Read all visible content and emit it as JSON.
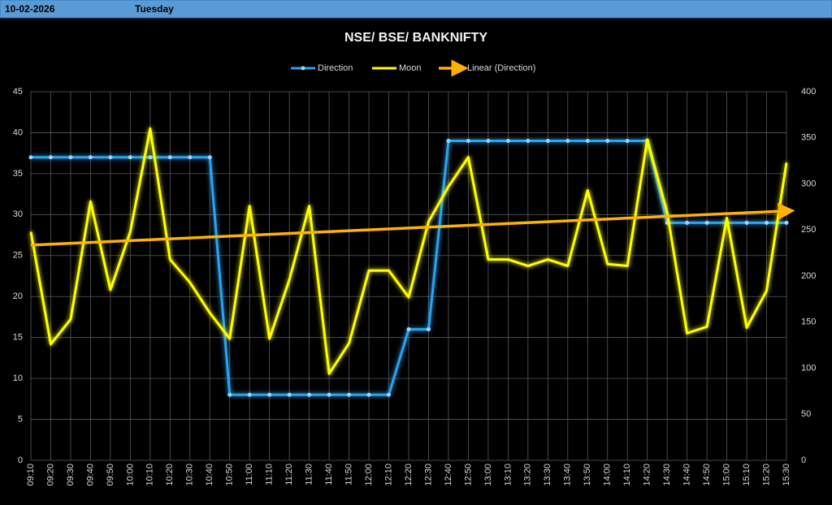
{
  "header": {
    "date": "10-02-2026",
    "day": "Tuesday"
  },
  "chart_data": {
    "type": "line",
    "title": "NSE/ BSE/ BANKNIFTY",
    "categories": [
      "09:10",
      "09:20",
      "09:30",
      "09:40",
      "09:50",
      "10:00",
      "10:10",
      "10:20",
      "10:30",
      "10:40",
      "10:50",
      "11:00",
      "11:10",
      "11:20",
      "11:30",
      "11:40",
      "11:50",
      "12:00",
      "12:10",
      "12:20",
      "12:30",
      "12:40",
      "12:50",
      "13:00",
      "13:10",
      "13:20",
      "13:30",
      "13:40",
      "13:50",
      "14:00",
      "14:10",
      "14:20",
      "14:30",
      "14:40",
      "14:50",
      "15:00",
      "15:10",
      "15:20",
      "15:30"
    ],
    "series": [
      {
        "name": "Direction",
        "color": "#29a3f0",
        "markers": true,
        "values": [
          37,
          37,
          37,
          37,
          37,
          37,
          37,
          37,
          37,
          37,
          8,
          8,
          8,
          8,
          8,
          8,
          8,
          8,
          8,
          16,
          16,
          39,
          39,
          39,
          39,
          39,
          39,
          39,
          39,
          39,
          39,
          39,
          29,
          29,
          29,
          29,
          29,
          29,
          29
        ]
      },
      {
        "name": "Moon",
        "color": "#ffff00",
        "axis": "y2",
        "values": [
          248,
          126,
          153,
          281,
          185,
          248,
          360,
          218,
          193,
          160,
          132,
          276,
          132,
          196,
          276,
          94,
          127,
          206,
          206,
          177,
          259,
          297,
          329,
          218,
          218,
          211,
          218,
          211,
          293,
          213,
          211,
          348,
          269,
          138,
          145,
          263,
          144,
          184,
          323
        ]
      }
    ],
    "trendline": {
      "name": "Linear (Direction)",
      "color": "#ffb300"
    },
    "ylim": [
      0,
      45
    ],
    "yticks": [
      0,
      5,
      10,
      15,
      20,
      25,
      30,
      35,
      40,
      45
    ],
    "y2lim": [
      0,
      400
    ],
    "y2ticks": [
      0,
      50,
      100,
      150,
      200,
      250,
      300,
      350,
      400
    ],
    "grid": true,
    "legend": "top"
  }
}
